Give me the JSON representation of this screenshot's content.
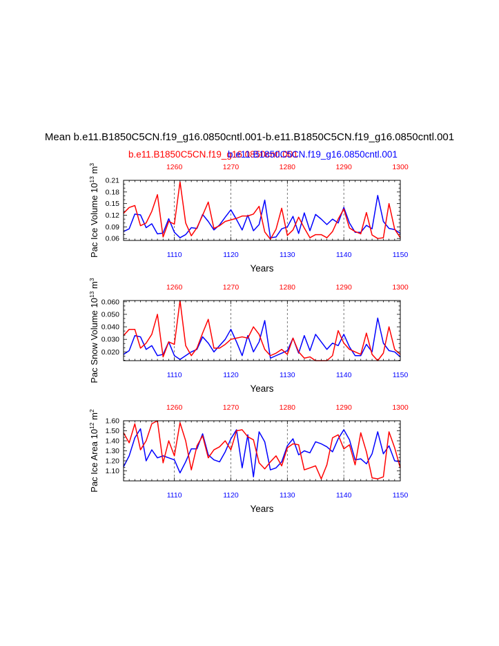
{
  "title": "Mean b.e11.B1850C5CN.f19_g16.0850cntl.001-b.e11.B1850C5CN.f19_g16.0850cntl.001",
  "subtitle_case1": "b.e11.B1850C5CN.f19_g16.0850cntl.001",
  "subtitle_case2": "b.e11.B1850C5CN.f19_g16.0850cntl.001",
  "colors": {
    "case1": "#ff0000",
    "case2": "#0000ff",
    "axis": "#000000",
    "grid": "#555555"
  },
  "chart_data": [
    {
      "type": "line",
      "title": "",
      "ylabel": "Pac Ice Volume 10^13 m^3",
      "ylabel_main": "Pac Ice Volume 10",
      "ylabel_exp": "13",
      "ylabel_unit": " m",
      "ylabel_unit_exp": "3",
      "xlabel": "Years",
      "ylim": [
        0.055,
        0.21
      ],
      "yticks": [
        0.06,
        0.09,
        0.12,
        0.15,
        0.18,
        0.21
      ],
      "ytick_labels": [
        "0.06",
        "0.09",
        "0.12",
        "0.15",
        "0.18",
        "0.21"
      ],
      "xlim_bottom": [
        1101,
        1150
      ],
      "xticks_bottom": [
        1110,
        1120,
        1130,
        1140,
        1150
      ],
      "xlim_top": [
        1251,
        1300
      ],
      "xticks_top": [
        1260,
        1270,
        1280,
        1290,
        1300
      ],
      "series": [
        {
          "name": "b.e11.B1850C5CN.f19_g16.0850cntl.001 (blue)",
          "color": "#0000ff",
          "x_start": 1101,
          "values": [
            0.078,
            0.085,
            0.123,
            0.121,
            0.088,
            0.098,
            0.072,
            0.074,
            0.111,
            0.076,
            0.062,
            0.07,
            0.088,
            0.086,
            0.122,
            0.104,
            0.082,
            0.095,
            0.115,
            0.134,
            0.109,
            0.082,
            0.12,
            0.08,
            0.096,
            0.159,
            0.062,
            0.064,
            0.085,
            0.09,
            0.117,
            0.073,
            0.126,
            0.08,
            0.122,
            0.11,
            0.096,
            0.11,
            0.1,
            0.14,
            0.1,
            0.076,
            0.076,
            0.094,
            0.085,
            0.171,
            0.104,
            0.086,
            0.083,
            0.073
          ]
        },
        {
          "name": "b.e11.B1850C5CN.f19_g16.0850cntl.001 (red)",
          "color": "#ff0000",
          "x_start": 1101,
          "values": [
            0.125,
            0.14,
            0.145,
            0.093,
            0.1,
            0.13,
            0.173,
            0.064,
            0.104,
            0.097,
            0.206,
            0.1,
            0.067,
            0.088,
            0.12,
            0.154,
            0.086,
            0.093,
            0.104,
            0.108,
            0.112,
            0.118,
            0.118,
            0.123,
            0.143,
            0.077,
            0.058,
            0.084,
            0.138,
            0.068,
            0.082,
            0.115,
            0.087,
            0.062,
            0.07,
            0.07,
            0.062,
            0.078,
            0.11,
            0.136,
            0.087,
            0.078,
            0.072,
            0.127,
            0.069,
            0.06,
            0.062,
            0.15,
            0.084,
            0.062
          ]
        }
      ]
    },
    {
      "type": "line",
      "title": "",
      "ylabel": "Pac Snow Volume 10^13 m^3",
      "ylabel_main": "Pac Snow Volume 10",
      "ylabel_exp": "13",
      "ylabel_unit": " m",
      "ylabel_unit_exp": "3",
      "xlabel": "Years",
      "ylim": [
        0.013,
        0.061
      ],
      "yticks": [
        0.02,
        0.03,
        0.04,
        0.05,
        0.06
      ],
      "ytick_labels": [
        "0.020",
        "0.030",
        "0.040",
        "0.050",
        "0.060"
      ],
      "xlim_bottom": [
        1101,
        1150
      ],
      "xticks_bottom": [
        1110,
        1120,
        1130,
        1140,
        1150
      ],
      "xlim_top": [
        1251,
        1300
      ],
      "xticks_top": [
        1260,
        1270,
        1280,
        1290,
        1300
      ],
      "series": [
        {
          "name": "b.e11.B1850C5CN.f19_g16.0850cntl.001 (blue)",
          "color": "#0000ff",
          "x_start": 1101,
          "values": [
            0.018,
            0.021,
            0.033,
            0.032,
            0.022,
            0.025,
            0.017,
            0.018,
            0.028,
            0.017,
            0.014,
            0.017,
            0.02,
            0.022,
            0.032,
            0.027,
            0.02,
            0.025,
            0.03,
            0.038,
            0.028,
            0.017,
            0.033,
            0.02,
            0.028,
            0.045,
            0.015,
            0.017,
            0.019,
            0.021,
            0.031,
            0.019,
            0.033,
            0.021,
            0.034,
            0.028,
            0.022,
            0.027,
            0.025,
            0.034,
            0.024,
            0.017,
            0.017,
            0.026,
            0.02,
            0.047,
            0.027,
            0.021,
            0.02,
            0.016
          ]
        },
        {
          "name": "b.e11.B1850C5CN.f19_g16.0850cntl.001 (red)",
          "color": "#ff0000",
          "x_start": 1101,
          "values": [
            0.033,
            0.038,
            0.038,
            0.023,
            0.027,
            0.034,
            0.05,
            0.016,
            0.028,
            0.026,
            0.061,
            0.025,
            0.017,
            0.023,
            0.035,
            0.046,
            0.023,
            0.023,
            0.026,
            0.03,
            0.031,
            0.032,
            0.031,
            0.04,
            0.034,
            0.022,
            0.017,
            0.019,
            0.022,
            0.018,
            0.031,
            0.02,
            0.015,
            0.016,
            0.013,
            0.013,
            0.013,
            0.017,
            0.037,
            0.027,
            0.022,
            0.02,
            0.018,
            0.035,
            0.018,
            0.013,
            0.019,
            0.04,
            0.022,
            0.018
          ]
        }
      ]
    },
    {
      "type": "line",
      "title": "",
      "ylabel": "Pac Ice Area 10^12 m^2",
      "ylabel_main": "Pac Ice Area 10",
      "ylabel_exp": "12",
      "ylabel_unit": " m",
      "ylabel_unit_exp": "2",
      "xlabel": "Years",
      "ylim": [
        1.0,
        1.6
      ],
      "yticks": [
        1.1,
        1.2,
        1.3,
        1.4,
        1.5,
        1.6
      ],
      "ytick_labels": [
        "1.10",
        "1.20",
        "1.30",
        "1.40",
        "1.50",
        "1.60"
      ],
      "xlim_bottom": [
        1101,
        1150
      ],
      "xticks_bottom": [
        1110,
        1120,
        1130,
        1140,
        1150
      ],
      "xlim_top": [
        1251,
        1300
      ],
      "xticks_top": [
        1260,
        1270,
        1280,
        1290,
        1300
      ],
      "series": [
        {
          "name": "b.e11.B1850C5CN.f19_g16.0850cntl.001 (blue)",
          "color": "#0000ff",
          "x_start": 1101,
          "values": [
            1.14,
            1.25,
            1.43,
            1.52,
            1.2,
            1.31,
            1.23,
            1.25,
            1.23,
            1.21,
            1.08,
            1.19,
            1.32,
            1.32,
            1.47,
            1.26,
            1.21,
            1.19,
            1.29,
            1.42,
            1.51,
            1.13,
            1.46,
            1.04,
            1.49,
            1.39,
            1.11,
            1.13,
            1.19,
            1.35,
            1.42,
            1.26,
            1.3,
            1.28,
            1.39,
            1.37,
            1.34,
            1.29,
            1.42,
            1.51,
            1.41,
            1.21,
            1.22,
            1.17,
            1.27,
            1.49,
            1.27,
            1.35,
            1.2,
            1.19
          ]
        },
        {
          "name": "b.e11.B1850C5CN.f19_g16.0850cntl.001 (red)",
          "color": "#ff0000",
          "x_start": 1101,
          "values": [
            1.48,
            1.38,
            1.57,
            1.31,
            1.4,
            1.57,
            1.6,
            1.18,
            1.4,
            1.25,
            1.58,
            1.4,
            1.11,
            1.35,
            1.45,
            1.23,
            1.31,
            1.34,
            1.4,
            1.31,
            1.5,
            1.51,
            1.44,
            1.41,
            1.18,
            1.12,
            1.19,
            1.25,
            1.15,
            1.33,
            1.37,
            1.36,
            1.11,
            1.13,
            1.15,
            1.02,
            1.16,
            1.43,
            1.46,
            1.32,
            1.36,
            1.16,
            1.48,
            1.29,
            1.03,
            1.02,
            1.04,
            1.49,
            1.33,
            1.13
          ]
        }
      ]
    }
  ]
}
